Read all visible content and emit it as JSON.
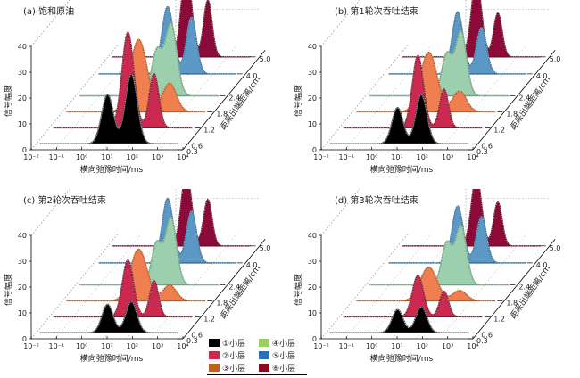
{
  "legend": {
    "items": [
      {
        "label": "①小层",
        "color": "#000000"
      },
      {
        "label": "②小层",
        "color": "#cc2950"
      },
      {
        "label": "③小层",
        "color": "#c0601a"
      },
      {
        "label": "④小层",
        "color": "#9ccf60"
      },
      {
        "label": "⑤小层",
        "color": "#2a6fb7"
      },
      {
        "label": "⑥小层",
        "color": "#8b0a20"
      }
    ]
  },
  "chart_data": [
    {
      "type": "area",
      "title": "(a) 饱和原油",
      "xlabel": "横向弛豫时间/ms",
      "ylabel": "信号幅度",
      "zlabel": "距采出端距离/cm",
      "x_scale": "log",
      "x_ticks": [
        "10⁻²",
        "10⁻¹",
        "10⁰",
        "10¹",
        "10²",
        "10³",
        "10⁴"
      ],
      "y_ticks": [
        "0",
        "10",
        "20",
        "30",
        "40"
      ],
      "ylim": [
        0,
        40
      ],
      "z_ticks": [
        "0.3",
        "0.6",
        "1.2",
        "1.8",
        "2.4",
        "4.0",
        "5.0"
      ],
      "series": [
        {
          "name": "①小层",
          "z": 0.6,
          "fill": "#000000",
          "peaks": [
            {
              "x_log": 1.0,
              "amp": 19,
              "w": 0.35
            },
            {
              "x_log": 2.0,
              "amp": 27,
              "w": 0.35
            }
          ]
        },
        {
          "name": "②小层",
          "z": 1.2,
          "fill": "#cc2950",
          "peaks": [
            {
              "x_log": 1.3,
              "amp": 37,
              "w": 0.35
            },
            {
              "x_log": 2.4,
              "amp": 21,
              "w": 0.28
            }
          ]
        },
        {
          "name": "③小层",
          "z": 1.8,
          "fill": "#f07f4f",
          "peaks": [
            {
              "x_log": 1.2,
              "amp": 28,
              "w": 0.5
            },
            {
              "x_log": 2.5,
              "amp": 11,
              "w": 0.4
            }
          ]
        },
        {
          "name": "④小层",
          "z": 2.4,
          "fill": "#9ccfae",
          "peaks": [
            {
              "x_log": 1.4,
              "amp": 17,
              "w": 0.3
            },
            {
              "x_log": 2.0,
              "amp": 28,
              "w": 0.35
            }
          ]
        },
        {
          "name": "⑤小层",
          "z": 4.0,
          "fill": "#5b98c6",
          "peaks": [
            {
              "x_log": 1.1,
              "amp": 26,
              "w": 0.35
            },
            {
              "x_log": 2.1,
              "amp": 22,
              "w": 0.3
            }
          ]
        },
        {
          "name": "⑥小层",
          "z": 5.0,
          "fill": "#8b0a3a",
          "peaks": [
            {
              "x_log": 1.3,
              "amp": 35,
              "w": 0.3
            },
            {
              "x_log": 2.2,
              "amp": 22,
              "w": 0.25
            }
          ]
        }
      ]
    },
    {
      "type": "area",
      "title": "(b) 第1轮次吞吐结束",
      "xlabel": "横向弛豫时间/ms",
      "ylabel": "信号幅度",
      "zlabel": "距采出端距离/cm",
      "x_scale": "log",
      "x_ticks": [
        "10⁻²",
        "10⁻¹",
        "10⁰",
        "10¹",
        "10²",
        "10³",
        "10⁴"
      ],
      "y_ticks": [
        "0",
        "10",
        "20",
        "30",
        "40"
      ],
      "ylim": [
        0,
        40
      ],
      "z_ticks": [
        "0.3",
        "0.6",
        "1.2",
        "1.8",
        "2.4",
        "4.0",
        "5.0"
      ],
      "series": [
        {
          "name": "①小层",
          "z": 0.6,
          "fill": "#000000",
          "peaks": [
            {
              "x_log": 1.0,
              "amp": 14,
              "w": 0.33
            },
            {
              "x_log": 2.0,
              "amp": 19,
              "w": 0.33
            }
          ]
        },
        {
          "name": "②小层",
          "z": 1.2,
          "fill": "#cc2950",
          "peaks": [
            {
              "x_log": 1.3,
              "amp": 28,
              "w": 0.33
            },
            {
              "x_log": 2.4,
              "amp": 15,
              "w": 0.26
            }
          ]
        },
        {
          "name": "③小层",
          "z": 1.8,
          "fill": "#f07f4f",
          "peaks": [
            {
              "x_log": 1.2,
              "amp": 23,
              "w": 0.5
            },
            {
              "x_log": 2.5,
              "amp": 8,
              "w": 0.4
            }
          ]
        },
        {
          "name": "④小层",
          "z": 2.4,
          "fill": "#9ccfae",
          "peaks": [
            {
              "x_log": 1.4,
              "amp": 16,
              "w": 0.3
            },
            {
              "x_log": 2.0,
              "amp": 25,
              "w": 0.33
            }
          ]
        },
        {
          "name": "⑤小层",
          "z": 4.0,
          "fill": "#5b98c6",
          "peaks": [
            {
              "x_log": 1.1,
              "amp": 24,
              "w": 0.33
            },
            {
              "x_log": 2.1,
              "amp": 18,
              "w": 0.3
            }
          ]
        },
        {
          "name": "⑥小层",
          "z": 5.0,
          "fill": "#8b0a3a",
          "peaks": [
            {
              "x_log": 1.3,
              "amp": 30,
              "w": 0.3
            },
            {
              "x_log": 2.2,
              "amp": 17,
              "w": 0.25
            }
          ]
        }
      ]
    },
    {
      "type": "area",
      "title": "(c) 第2轮次吞吐结束",
      "xlabel": "横向弛豫时间/ms",
      "ylabel": "信号幅度",
      "zlabel": "距采出端距离/cm",
      "x_scale": "log",
      "x_ticks": [
        "10⁻²",
        "10⁻¹",
        "10⁰",
        "10¹",
        "10²",
        "10³",
        "10⁴"
      ],
      "y_ticks": [
        "0",
        "10",
        "20",
        "30",
        "40"
      ],
      "ylim": [
        0,
        40
      ],
      "z_ticks": [
        "0.3",
        "0.6",
        "1.2",
        "1.8",
        "2.4",
        "4.0",
        "5.0"
      ],
      "series": [
        {
          "name": "①小层",
          "z": 0.6,
          "fill": "#000000",
          "peaks": [
            {
              "x_log": 1.0,
              "amp": 11,
              "w": 0.33
            },
            {
              "x_log": 2.0,
              "amp": 12,
              "w": 0.33
            }
          ]
        },
        {
          "name": "②小层",
          "z": 1.2,
          "fill": "#cc2950",
          "peaks": [
            {
              "x_log": 1.3,
              "amp": 22,
              "w": 0.33
            },
            {
              "x_log": 2.4,
              "amp": 14,
              "w": 0.26
            }
          ]
        },
        {
          "name": "③小层",
          "z": 1.8,
          "fill": "#f07f4f",
          "peaks": [
            {
              "x_log": 1.2,
              "amp": 20,
              "w": 0.5
            },
            {
              "x_log": 2.5,
              "amp": 6,
              "w": 0.4
            }
          ]
        },
        {
          "name": "④小层",
          "z": 2.4,
          "fill": "#9ccfae",
          "peaks": [
            {
              "x_log": 1.4,
              "amp": 16,
              "w": 0.3
            },
            {
              "x_log": 2.0,
              "amp": 26,
              "w": 0.33
            }
          ]
        },
        {
          "name": "⑤小层",
          "z": 4.0,
          "fill": "#5b98c6",
          "peaks": [
            {
              "x_log": 1.1,
              "amp": 25,
              "w": 0.33
            },
            {
              "x_log": 2.1,
              "amp": 20,
              "w": 0.3
            }
          ]
        },
        {
          "name": "⑥小层",
          "z": 5.0,
          "fill": "#8b0a3a",
          "peaks": [
            {
              "x_log": 1.3,
              "amp": 29,
              "w": 0.3
            },
            {
              "x_log": 2.2,
              "amp": 18,
              "w": 0.25
            }
          ]
        }
      ]
    },
    {
      "type": "area",
      "title": "(d) 第3轮次吞吐结束",
      "xlabel": "横向弛豫时间/ms",
      "ylabel": "信号幅度",
      "zlabel": "距采出端距离/cm",
      "x_scale": "log",
      "x_ticks": [
        "10⁻²",
        "10⁻¹",
        "10⁰",
        "10¹",
        "10²",
        "10³",
        "10⁴"
      ],
      "y_ticks": [
        "0",
        "10",
        "20",
        "30",
        "40"
      ],
      "ylim": [
        0,
        40
      ],
      "z_ticks": [
        "0.3",
        "0.6",
        "1.2",
        "1.8",
        "2.4",
        "4.0",
        "5.0"
      ],
      "series": [
        {
          "name": "①小层",
          "z": 0.6,
          "fill": "#000000",
          "peaks": [
            {
              "x_log": 1.0,
              "amp": 9,
              "w": 0.33
            },
            {
              "x_log": 2.0,
              "amp": 10,
              "w": 0.33
            }
          ]
        },
        {
          "name": "②小层",
          "z": 1.2,
          "fill": "#cc2950",
          "peaks": [
            {
              "x_log": 1.3,
              "amp": 16,
              "w": 0.33
            },
            {
              "x_log": 2.4,
              "amp": 10,
              "w": 0.26
            }
          ]
        },
        {
          "name": "③小层",
          "z": 1.8,
          "fill": "#f07f4f",
          "peaks": [
            {
              "x_log": 1.2,
              "amp": 13,
              "w": 0.5
            },
            {
              "x_log": 2.5,
              "amp": 4,
              "w": 0.4
            }
          ]
        },
        {
          "name": "④小层",
          "z": 2.4,
          "fill": "#9ccfae",
          "peaks": [
            {
              "x_log": 1.4,
              "amp": 16,
              "w": 0.3
            },
            {
              "x_log": 2.0,
              "amp": 23,
              "w": 0.33
            }
          ]
        },
        {
          "name": "⑤小层",
          "z": 4.0,
          "fill": "#5b98c6",
          "peaks": [
            {
              "x_log": 1.1,
              "amp": 22,
              "w": 0.33
            },
            {
              "x_log": 2.1,
              "amp": 18,
              "w": 0.3
            }
          ]
        },
        {
          "name": "⑥小层",
          "z": 5.0,
          "fill": "#8b0a3a",
          "peaks": [
            {
              "x_log": 1.3,
              "amp": 27,
              "w": 0.3
            },
            {
              "x_log": 2.2,
              "amp": 17,
              "w": 0.25
            }
          ]
        }
      ]
    }
  ]
}
